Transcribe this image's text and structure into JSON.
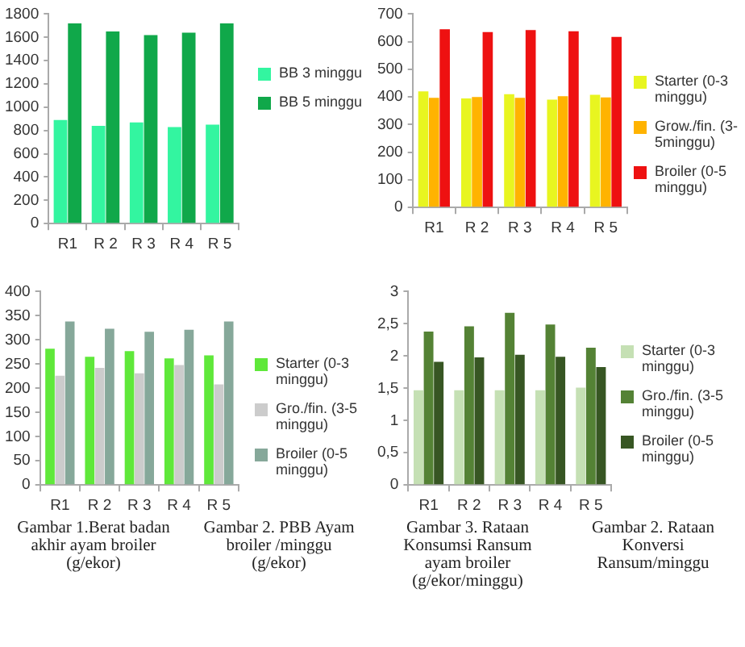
{
  "chart_data": [
    {
      "type": "bar",
      "categories": [
        "R1",
        "R 2",
        "R 3",
        "R 4",
        "R 5"
      ],
      "ylim": [
        0,
        1800
      ],
      "yticks": [
        0,
        200,
        400,
        600,
        800,
        1000,
        1200,
        1400,
        1600,
        1800
      ],
      "grid": false,
      "legend": "right",
      "series": [
        {
          "name": "BB 3 minggu",
          "color": "#33f5a0",
          "values": [
            890,
            840,
            870,
            830,
            850
          ]
        },
        {
          "name": "BB 5 minggu",
          "color": "#10a84a",
          "values": [
            1720,
            1650,
            1620,
            1640,
            1720
          ]
        }
      ]
    },
    {
      "type": "bar",
      "categories": [
        "R1",
        "R 2",
        "R 3",
        "R 4",
        "R 5"
      ],
      "ylim": [
        0,
        700
      ],
      "yticks": [
        0,
        100,
        200,
        300,
        400,
        500,
        600,
        700
      ],
      "grid": false,
      "legend": "right",
      "series": [
        {
          "name": "Starter (0-3 minggu)",
          "color": "#e8f520",
          "values": [
            420,
            395,
            410,
            390,
            408
          ]
        },
        {
          "name": "Grow./fin. (3-5minggu)",
          "color": "#ffb300",
          "values": [
            397,
            400,
            397,
            403,
            398
          ]
        },
        {
          "name": "Broiler (0-5 minggu)",
          "color": "#ee1111",
          "values": [
            645,
            635,
            642,
            638,
            617
          ]
        }
      ]
    },
    {
      "type": "bar",
      "categories": [
        "R1",
        "R 2",
        "R 3",
        "R 4",
        "R 5"
      ],
      "ylim": [
        0,
        400
      ],
      "yticks": [
        0,
        50,
        100,
        150,
        200,
        250,
        300,
        350,
        400
      ],
      "grid": false,
      "legend": "right",
      "annotations": [
        "Gambar 1.Berat badan akhir ayam broiler (g/ekor)",
        "Gambar 2. PBB Ayam broiler /minggu (g/ekor)"
      ],
      "series": [
        {
          "name": "Starter (0-3 minggu)",
          "color": "#5fe83a",
          "values": [
            282,
            265,
            277,
            262,
            268
          ]
        },
        {
          "name": "Gro./fin. (3-5 minggu)",
          "color": "#cccccc",
          "values": [
            226,
            242,
            231,
            248,
            208
          ]
        },
        {
          "name": "Broiler (0-5 minggu)",
          "color": "#86a89a",
          "values": [
            338,
            323,
            317,
            321,
            338
          ]
        }
      ]
    },
    {
      "type": "bar",
      "categories": [
        "R1",
        "R 2",
        "R 3",
        "R 4",
        "R 5"
      ],
      "ylim": [
        0,
        3
      ],
      "yticks": [
        0,
        {
          "value": 0.5,
          "label": "0,5"
        },
        1,
        {
          "value": 1.5,
          "label": "1,5"
        },
        2,
        {
          "value": 2.5,
          "label": "2,5"
        },
        3
      ],
      "grid": false,
      "legend": "right",
      "annotations": [
        "Gambar 3. Rataan Konsumsi Ransum ayam broiler (g/ekor/minggu)",
        "Gambar 2. Rataan Konversi Ransum/minggu"
      ],
      "series": [
        {
          "name": "Starter (0-3 minggu)",
          "color": "#c5e0b4",
          "values": [
            1.47,
            1.47,
            1.47,
            1.47,
            1.51
          ]
        },
        {
          "name": "Gro./fin. (3-5 minggu)",
          "color": "#548235",
          "values": [
            2.38,
            2.46,
            2.67,
            2.49,
            2.13
          ]
        },
        {
          "name": "Broiler (0-5 minggu)",
          "color": "#375623",
          "values": [
            1.91,
            1.98,
            2.02,
            1.99,
            1.83
          ]
        }
      ]
    }
  ]
}
